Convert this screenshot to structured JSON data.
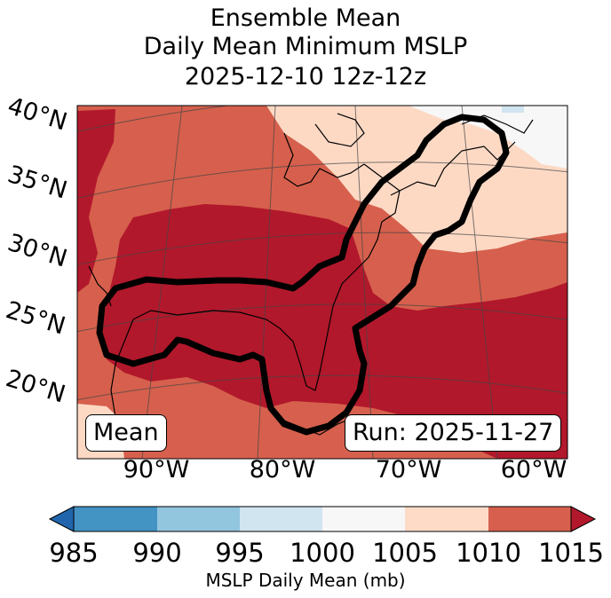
{
  "title": {
    "line1": "Ensemble Mean",
    "line2": "Daily Mean Minimum MSLP",
    "line3": "2025-12-10 12z-12z"
  },
  "map": {
    "lat_labels": [
      "40°N",
      "35°N",
      "30°N",
      "25°N",
      "20°N"
    ],
    "lon_labels": [
      "90°W",
      "80°W",
      "70°W",
      "60°W"
    ],
    "badge_left": "Mean",
    "badge_right": "Run: 2025-11-27",
    "colors": {
      "c1015": "#b2182b",
      "c1010": "#d6604d",
      "c1005": "#fdd9c4",
      "c1000": "#f7f7f7",
      "c995": "#d1e5f0",
      "outline": "#000000"
    }
  },
  "colorbar": {
    "ticks": [
      "985",
      "990",
      "995",
      "1000",
      "1005",
      "1010",
      "1015"
    ],
    "label": "MSLP Daily Mean (mb)",
    "colors": [
      "#2166ac",
      "#4393c3",
      "#92c5de",
      "#d1e5f0",
      "#f7f7f7",
      "#fddbc7",
      "#d6604d",
      "#b2182b"
    ]
  }
}
